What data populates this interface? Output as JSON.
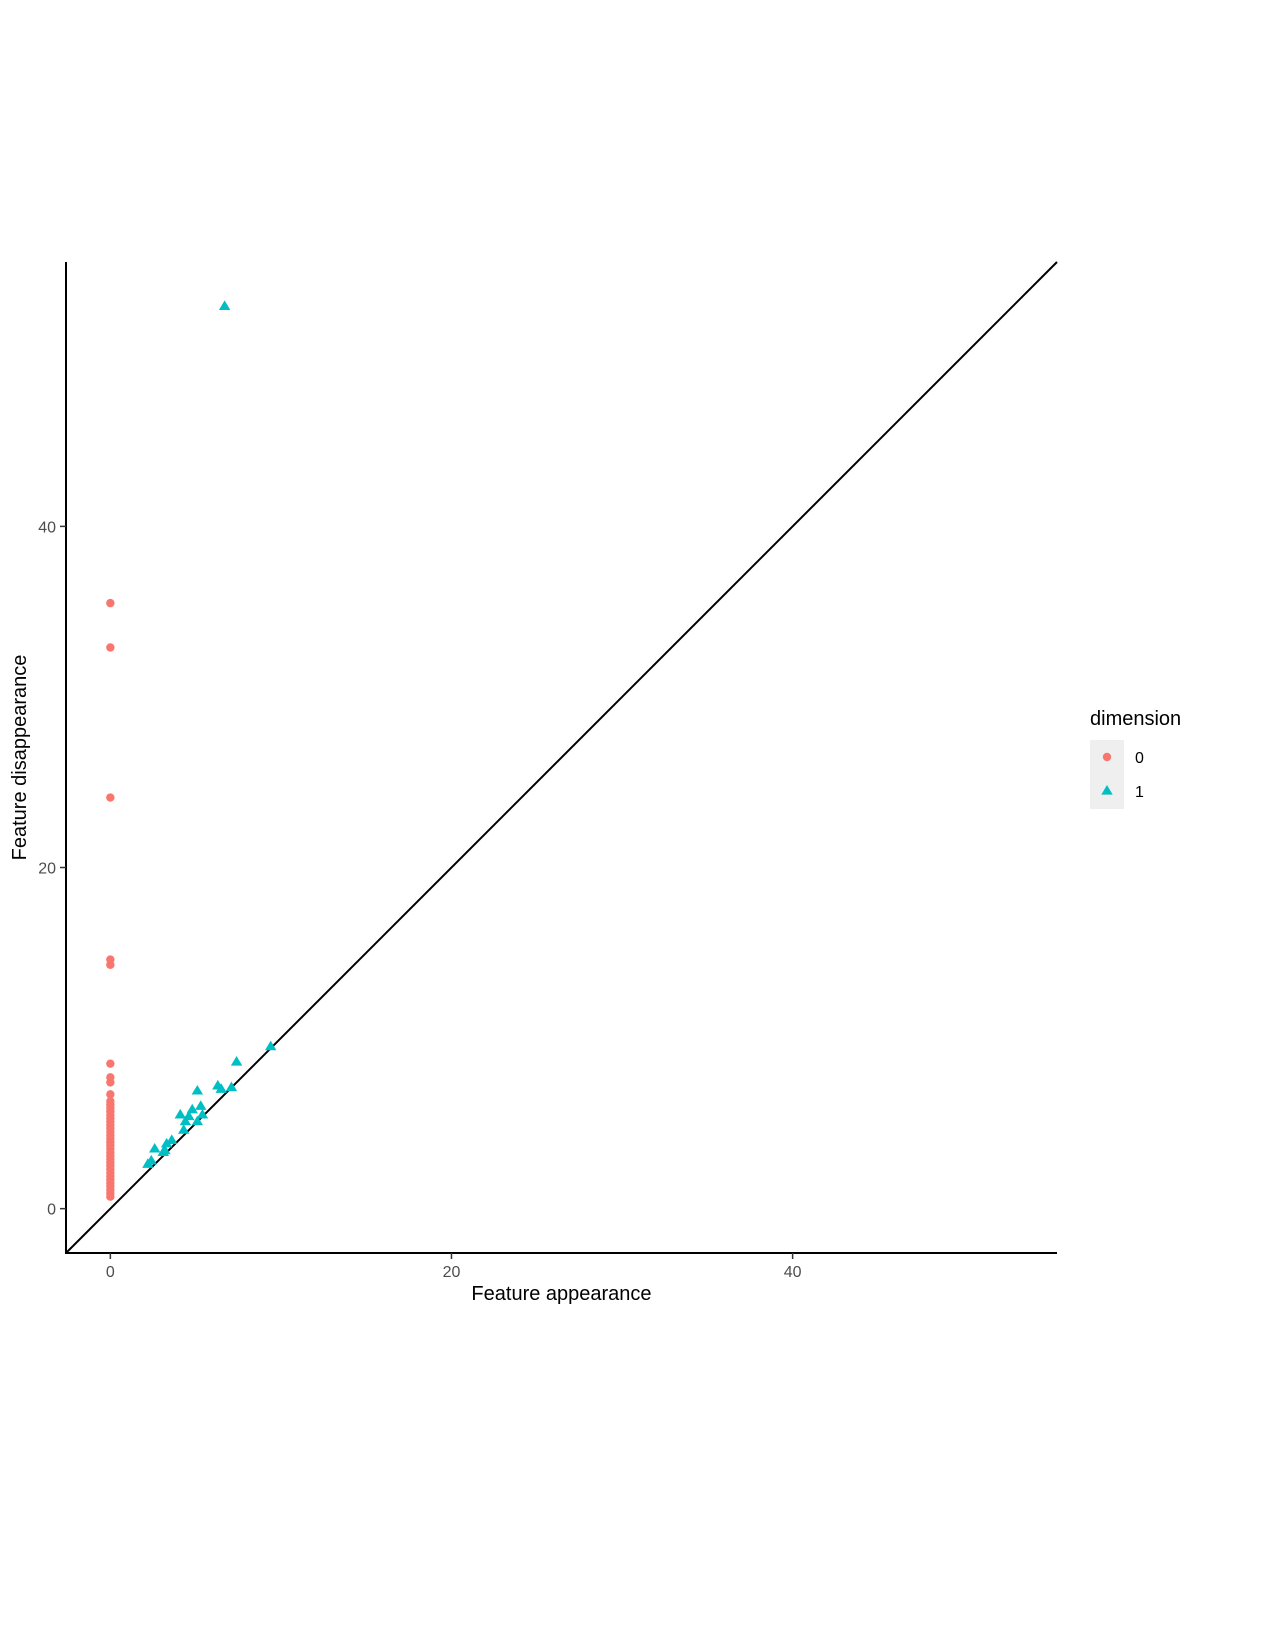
{
  "chart_data": {
    "type": "scatter",
    "title": "",
    "xlabel": "Feature appearance",
    "ylabel": "Feature disappearance",
    "xlim": [
      -2.6,
      55.5
    ],
    "ylim": [
      -2.6,
      55.5
    ],
    "xticks": [
      0,
      20,
      40
    ],
    "yticks": [
      0,
      20,
      40
    ],
    "grid": false,
    "diagonal_line": true,
    "legend": {
      "title": "dimension",
      "position": "right"
    },
    "series": [
      {
        "name": "0",
        "shape": "circle",
        "color": "#F8766D",
        "points": [
          [
            0,
            35.5
          ],
          [
            0,
            32.9
          ],
          [
            0,
            24.1
          ],
          [
            0,
            14.6
          ],
          [
            0,
            14.3
          ],
          [
            0,
            8.5
          ],
          [
            0,
            7.7
          ],
          [
            0,
            7.4
          ],
          [
            0,
            6.7
          ],
          [
            0,
            6.3
          ],
          [
            0,
            6.1
          ],
          [
            0,
            5.9
          ],
          [
            0,
            5.7
          ],
          [
            0,
            5.5
          ],
          [
            0,
            5.3
          ],
          [
            0,
            5.1
          ],
          [
            0,
            4.9
          ],
          [
            0,
            4.7
          ],
          [
            0,
            4.5
          ],
          [
            0,
            4.3
          ],
          [
            0,
            4.1
          ],
          [
            0,
            3.9
          ],
          [
            0,
            3.7
          ],
          [
            0,
            3.5
          ],
          [
            0,
            3.3
          ],
          [
            0,
            3.1
          ],
          [
            0,
            2.9
          ],
          [
            0,
            2.7
          ],
          [
            0,
            2.5
          ],
          [
            0,
            2.3
          ],
          [
            0,
            2.1
          ],
          [
            0,
            1.9
          ],
          [
            0,
            1.7
          ],
          [
            0,
            1.5
          ],
          [
            0,
            1.3
          ],
          [
            0,
            1.1
          ],
          [
            0,
            0.9
          ],
          [
            0,
            0.7
          ]
        ]
      },
      {
        "name": "1",
        "shape": "triangle",
        "color": "#00BFC4",
        "points": [
          [
            6.7,
            52.9
          ],
          [
            9.4,
            9.5
          ],
          [
            7.4,
            8.6
          ],
          [
            6.3,
            7.2
          ],
          [
            6.5,
            7.0
          ],
          [
            7.1,
            7.1
          ],
          [
            5.1,
            6.9
          ],
          [
            5.3,
            6.0
          ],
          [
            4.8,
            5.8
          ],
          [
            4.1,
            5.5
          ],
          [
            4.6,
            5.4
          ],
          [
            5.4,
            5.5
          ],
          [
            4.4,
            5.1
          ],
          [
            5.1,
            5.1
          ],
          [
            4.3,
            4.6
          ],
          [
            3.6,
            4.0
          ],
          [
            3.3,
            3.8
          ],
          [
            2.6,
            3.5
          ],
          [
            3.2,
            3.4
          ],
          [
            3.1,
            3.3
          ],
          [
            2.4,
            2.8
          ],
          [
            2.2,
            2.6
          ]
        ]
      }
    ]
  }
}
